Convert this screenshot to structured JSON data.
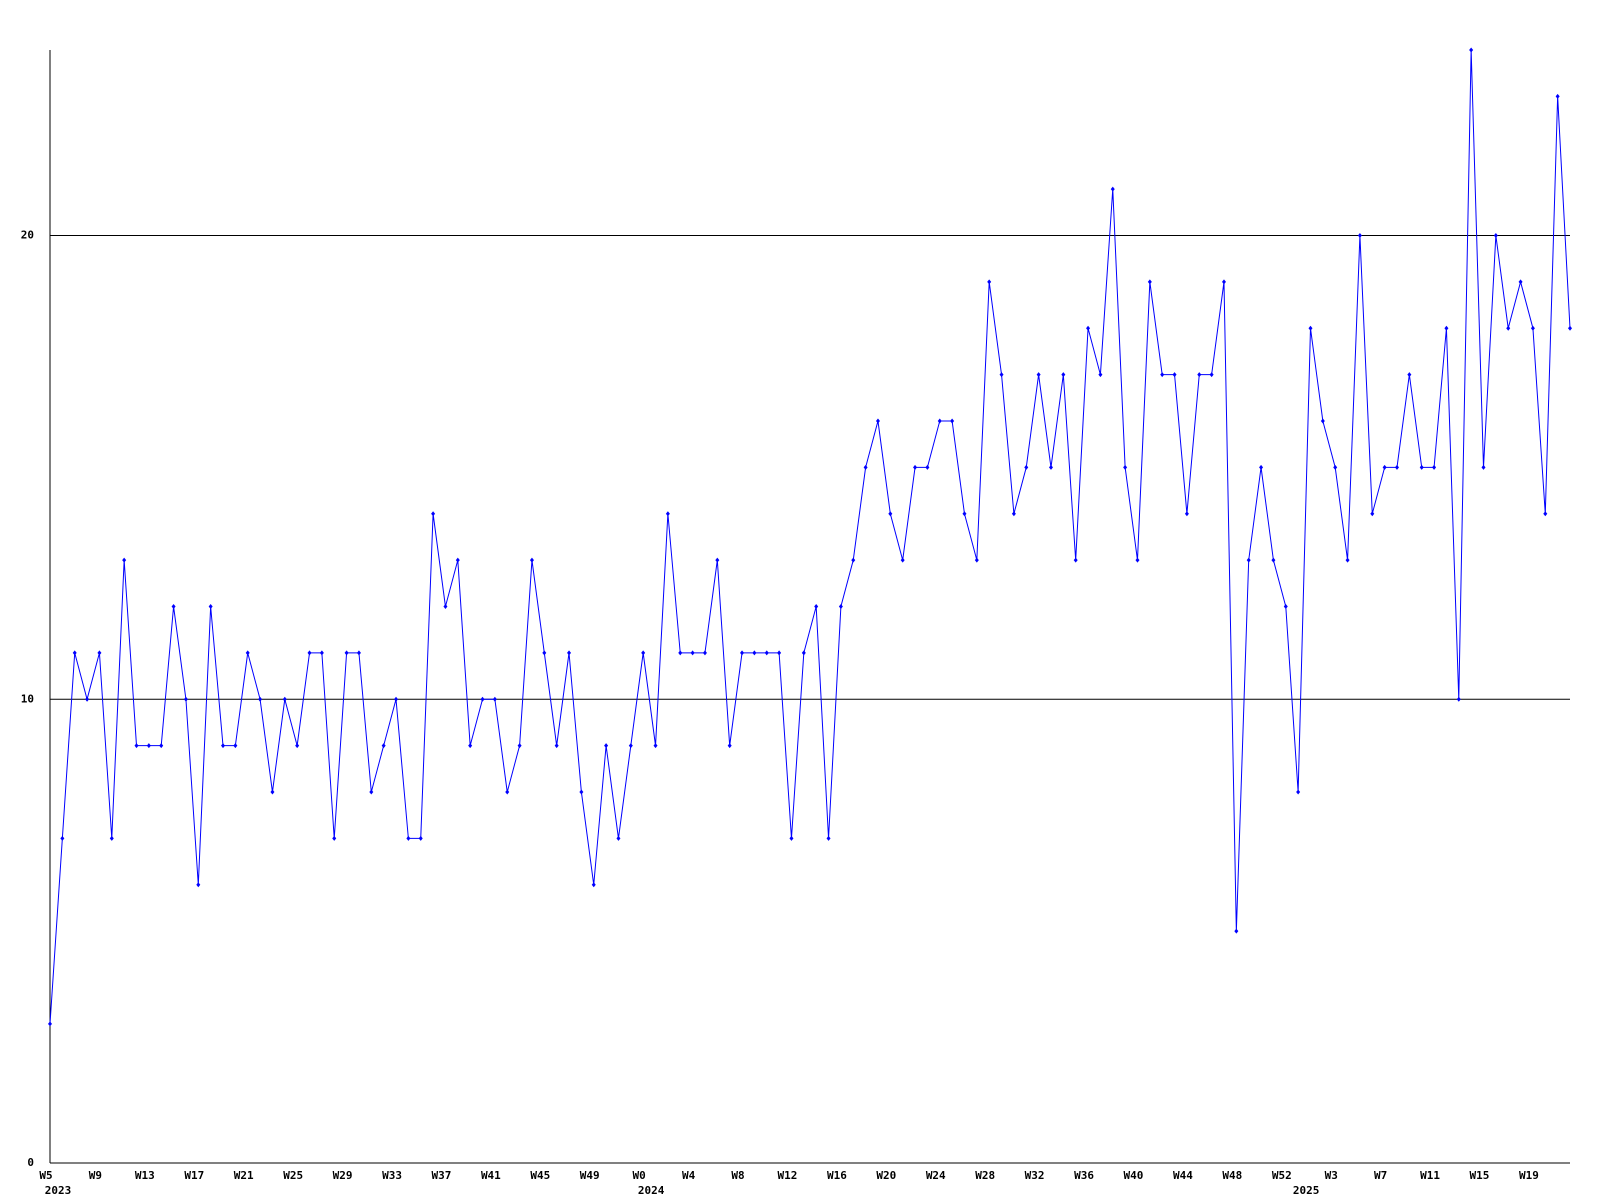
{
  "chart_data": {
    "type": "line",
    "categories": [
      "W5",
      null,
      null,
      null,
      "W9",
      null,
      null,
      null,
      "W13",
      null,
      null,
      null,
      "W17",
      null,
      null,
      null,
      "W21",
      null,
      null,
      null,
      "W25",
      null,
      null,
      null,
      "W29",
      null,
      null,
      null,
      "W33",
      null,
      null,
      null,
      "W37",
      null,
      null,
      null,
      "W41",
      null,
      null,
      null,
      "W45",
      null,
      null,
      null,
      "W49",
      null,
      null,
      null,
      "W0",
      null,
      null,
      null,
      "W4",
      null,
      null,
      null,
      "W8",
      null,
      null,
      null,
      "W12",
      null,
      null,
      null,
      "W16",
      null,
      null,
      null,
      "W20",
      null,
      null,
      null,
      "W24",
      null,
      null,
      null,
      "W28",
      null,
      null,
      null,
      "W32",
      null,
      null,
      null,
      "W36",
      null,
      null,
      null,
      "W40",
      null,
      null,
      null,
      "W44",
      null,
      null,
      null,
      "W48",
      null,
      null,
      null,
      "W52",
      null,
      null,
      null,
      "W3",
      null,
      null,
      null,
      "W7",
      null,
      null,
      null,
      "W11",
      null,
      null,
      null,
      "W15",
      null,
      null,
      null,
      "W19",
      null,
      null,
      null
    ],
    "category_years": [
      "2023",
      null,
      null,
      null,
      null,
      null,
      null,
      null,
      null,
      null,
      null,
      null,
      null,
      null,
      null,
      null,
      null,
      null,
      null,
      null,
      null,
      null,
      null,
      null,
      null,
      null,
      null,
      null,
      null,
      null,
      null,
      null,
      null,
      null,
      null,
      null,
      null,
      null,
      null,
      null,
      null,
      null,
      null,
      null,
      null,
      null,
      null,
      null,
      "2024",
      null,
      null,
      null,
      null,
      null,
      null,
      null,
      null,
      null,
      null,
      null,
      null,
      null,
      null,
      null,
      null,
      null,
      null,
      null,
      null,
      null,
      null,
      null,
      null,
      null,
      null,
      null,
      null,
      null,
      null,
      null,
      null,
      null,
      null,
      null,
      null,
      null,
      null,
      null,
      null,
      null,
      null,
      null,
      null,
      null,
      null,
      null,
      null,
      null,
      null,
      null,
      null,
      "2025",
      null,
      null,
      null,
      null,
      null,
      null,
      null,
      null,
      null,
      null,
      null,
      null,
      null,
      null,
      null,
      null,
      null,
      null,
      null,
      null,
      null,
      null
    ],
    "series": [
      {
        "color": "#0000ff",
        "values": [
          3,
          7,
          11,
          10,
          11,
          7,
          13,
          9,
          9,
          9,
          12,
          10,
          6,
          12,
          9,
          9,
          11,
          10,
          8,
          10,
          9,
          11,
          11,
          7,
          11,
          11,
          8,
          9,
          10,
          7,
          7,
          14,
          12,
          13,
          9,
          10,
          10,
          8,
          9,
          13,
          11,
          9,
          11,
          8,
          6,
          9,
          7,
          9,
          11,
          9,
          14,
          11,
          11,
          11,
          13,
          9,
          11,
          11,
          11,
          11,
          7,
          11,
          12,
          7,
          12,
          13,
          15,
          16,
          14,
          13,
          15,
          15,
          16,
          16,
          14,
          13,
          19,
          17,
          14,
          15,
          17,
          15,
          17,
          13,
          18,
          17,
          21,
          15,
          13,
          19,
          17,
          17,
          14,
          17,
          17,
          19,
          5,
          13,
          15,
          13,
          12,
          8,
          18,
          16,
          15,
          13,
          20,
          14,
          15,
          15,
          17,
          15,
          15,
          18,
          10,
          24,
          15,
          20,
          18,
          19,
          18,
          14,
          23,
          18
        ]
      }
    ],
    "ylim": [
      0,
      24
    ],
    "yticks": [
      0,
      10,
      20
    ],
    "grid": true
  }
}
